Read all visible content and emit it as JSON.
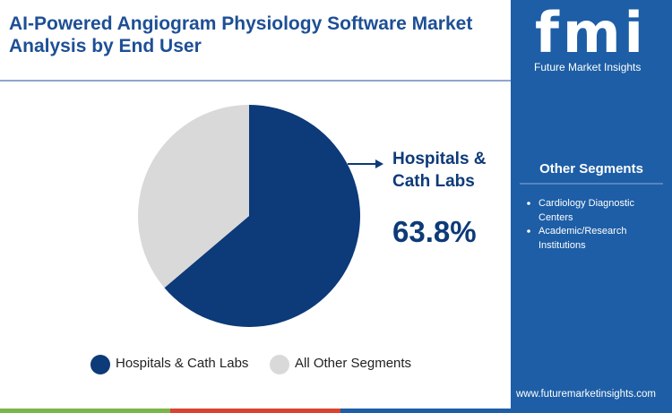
{
  "chart_data": {
    "type": "pie",
    "title": "AI-Powered Angiogram Physiology Software Market Analysis by End User",
    "categories": [
      "Hospitals & Cath Labs",
      "All Other Segments"
    ],
    "values": [
      63.8,
      36.2
    ],
    "value_labels": [
      "63.8%",
      null
    ],
    "colors": [
      "#0d3a78",
      "#d9d9d9"
    ],
    "legend": "bottom"
  },
  "sidebar": {
    "logo": "fmi",
    "brand": "Future Market Insights",
    "heading": "Other Segments",
    "items": [
      "Cardiology Diagnostic Centers",
      "Academic/Research Institutions"
    ],
    "website": "www.futuremarketinsights.com"
  }
}
